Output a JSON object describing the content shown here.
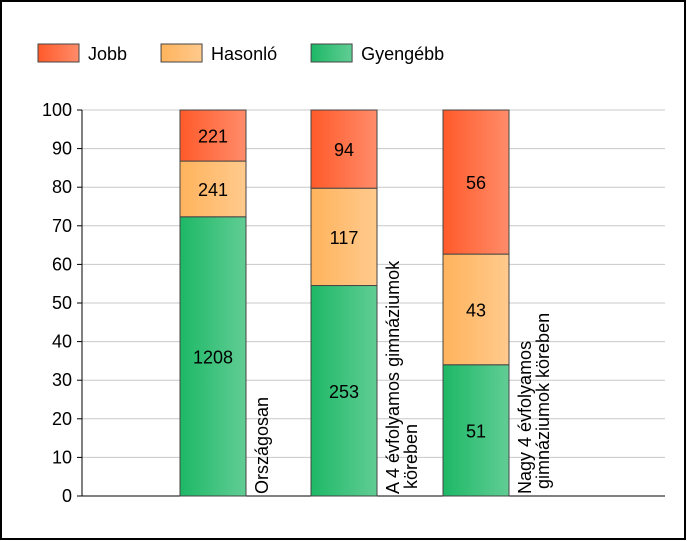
{
  "chart_data": {
    "type": "bar",
    "stack": "percent",
    "categories": [
      "Országosan",
      "A 4 évfolyamos gimnáziumok köreben",
      "Nagy 4 évfolyamos gimnáziumok köreben"
    ],
    "series": [
      {
        "name": "Gyengébb",
        "color": "#1db866",
        "values": [
          1208,
          253,
          51
        ]
      },
      {
        "name": "Hasonló",
        "color": "#ffb35c",
        "values": [
          241,
          117,
          43
        ]
      },
      {
        "name": "Jobb",
        "color": "#ff5a2a",
        "values": [
          221,
          94,
          56
        ]
      }
    ],
    "legend_order": [
      "Jobb",
      "Hasonló",
      "Gyengébb"
    ],
    "ylim": [
      0,
      100
    ],
    "yticks": [
      0,
      10,
      20,
      30,
      40,
      50,
      60,
      70,
      80,
      90,
      100
    ],
    "grid": true,
    "legend": "top-left"
  }
}
